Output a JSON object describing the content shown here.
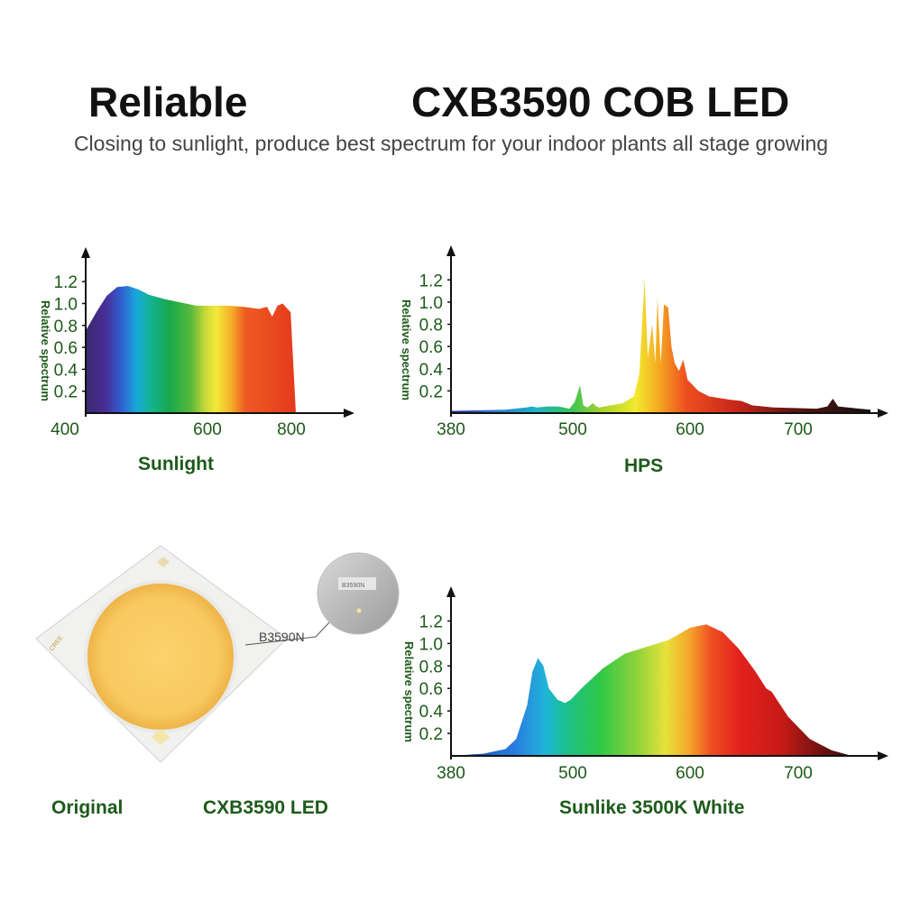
{
  "header": {
    "title_left": "Reliable",
    "title_right": "CXB3590 COB LED",
    "subtitle": "Closing to sunlight, produce best spectrum for your indoor plants all stage growing"
  },
  "colors": {
    "axis_text": "#1d5a1a",
    "axis_line": "#111111"
  },
  "chart_data": [
    {
      "type": "area",
      "title": "Sunlight",
      "ylabel": "Relative spectrum",
      "xlim": [
        400,
        800
      ],
      "ylim": [
        0,
        1.3
      ],
      "y_ticks": [
        "0.2",
        "0.4",
        "0.6",
        "0.8",
        "1.0",
        "1.2"
      ],
      "x_ticks": [
        "400",
        "600",
        "800"
      ],
      "x": [
        400,
        420,
        440,
        460,
        480,
        500,
        520,
        550,
        580,
        610,
        640,
        670,
        700,
        730,
        745,
        755,
        765,
        775,
        790,
        800
      ],
      "y": [
        0.75,
        0.92,
        1.07,
        1.15,
        1.16,
        1.13,
        1.08,
        1.04,
        1.01,
        0.98,
        0.98,
        0.98,
        0.97,
        0.95,
        0.97,
        0.88,
        0.98,
        1.0,
        0.92,
        0.0
      ]
    },
    {
      "type": "area",
      "title": "HPS",
      "ylabel": "Relative spectrum",
      "xlim": [
        380,
        770
      ],
      "ylim": [
        0,
        1.3
      ],
      "y_ticks": [
        "0.2",
        "0.4",
        "0.6",
        "0.8",
        "1.0",
        "1.2"
      ],
      "x_ticks": [
        "380",
        "500",
        "600",
        "700"
      ],
      "x": [
        380,
        430,
        450,
        455,
        460,
        470,
        480,
        490,
        495,
        500,
        503,
        507,
        512,
        515,
        518,
        540,
        550,
        555,
        560,
        563,
        567,
        570,
        572,
        575,
        578,
        582,
        585,
        588,
        592,
        596,
        600,
        610,
        620,
        640,
        650,
        660,
        680,
        720,
        730,
        735,
        740,
        760,
        770
      ],
      "y": [
        0.02,
        0.03,
        0.05,
        0.06,
        0.05,
        0.06,
        0.06,
        0.04,
        0.1,
        0.25,
        0.07,
        0.05,
        0.09,
        0.06,
        0.05,
        0.09,
        0.15,
        0.35,
        1.2,
        0.5,
        0.8,
        0.45,
        1.03,
        0.45,
        0.98,
        0.95,
        0.6,
        0.45,
        0.38,
        0.48,
        0.3,
        0.2,
        0.15,
        0.12,
        0.11,
        0.07,
        0.05,
        0.04,
        0.06,
        0.13,
        0.06,
        0.04,
        0.03
      ]
    },
    {
      "type": "area",
      "title": "Sunlike 3500K White",
      "ylabel": "Relative spectrum",
      "xlim": [
        380,
        760
      ],
      "ylim": [
        0,
        1.3
      ],
      "y_ticks": [
        "0.2",
        "0.4",
        "0.6",
        "0.8",
        "1.0",
        "1.2"
      ],
      "x_ticks": [
        "380",
        "500",
        "600",
        "700"
      ],
      "x": [
        380,
        410,
        430,
        440,
        450,
        455,
        460,
        465,
        470,
        478,
        485,
        490,
        500,
        520,
        540,
        560,
        580,
        600,
        615,
        630,
        645,
        660,
        670,
        675,
        690,
        710,
        730,
        745,
        750
      ],
      "y": [
        0.0,
        0.02,
        0.06,
        0.15,
        0.45,
        0.75,
        0.87,
        0.8,
        0.6,
        0.5,
        0.47,
        0.5,
        0.6,
        0.78,
        0.91,
        0.97,
        1.03,
        1.14,
        1.17,
        1.1,
        0.95,
        0.75,
        0.6,
        0.57,
        0.35,
        0.15,
        0.05,
        0.01,
        0.0
      ]
    }
  ],
  "product": {
    "caption_left": "Original",
    "caption_right": "CXB3590 LED",
    "chip_label": "B3590N",
    "zoom_text": "B3590N",
    "edge_text": "CREE"
  }
}
